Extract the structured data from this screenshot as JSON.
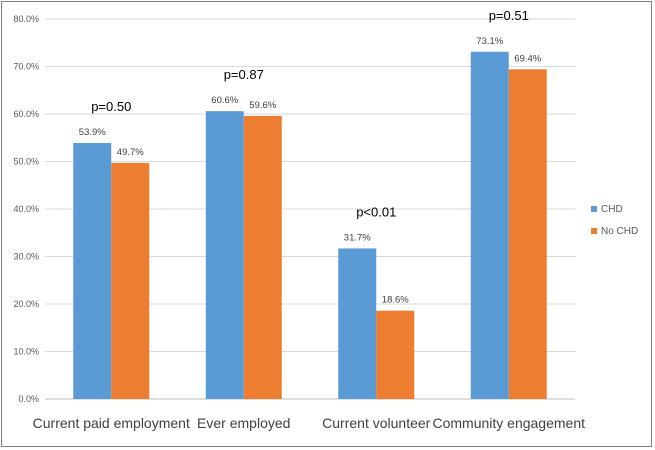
{
  "colors": {
    "series_1": "#5b9bd5",
    "series_2": "#ed7d31",
    "grid": "#d9d9d9",
    "axis": "#bfbfbf",
    "p_significant": "#c00000",
    "p_normal": "#000000"
  },
  "chart_data": {
    "type": "bar",
    "title": "",
    "xlabel": "",
    "ylabel": "",
    "ylim": [
      0,
      80
    ],
    "y_ticks": [
      "0.0%",
      "10.0%",
      "20.0%",
      "30.0%",
      "40.0%",
      "50.0%",
      "60.0%",
      "70.0%",
      "80.0%"
    ],
    "grid": true,
    "legend_position": "right",
    "categories": [
      "Current paid employment",
      "Ever employed",
      "Current volunteer",
      "Community engagement"
    ],
    "series": [
      {
        "name": "CHD",
        "values": [
          53.9,
          60.6,
          31.7,
          73.1
        ],
        "labels": [
          "53.9%",
          "60.6%",
          "31.7%",
          "73.1%"
        ]
      },
      {
        "name": "No CHD",
        "values": [
          49.7,
          59.6,
          18.6,
          69.4
        ],
        "labels": [
          "49.7%",
          "59.6%",
          "18.6%",
          "69.4%"
        ]
      }
    ],
    "annotations": [
      {
        "text": "p=0.50",
        "significant": false
      },
      {
        "text": "p=0.87",
        "significant": false
      },
      {
        "text": "p<0.01",
        "significant": true
      },
      {
        "text": "p=0.51",
        "significant": false
      }
    ]
  }
}
